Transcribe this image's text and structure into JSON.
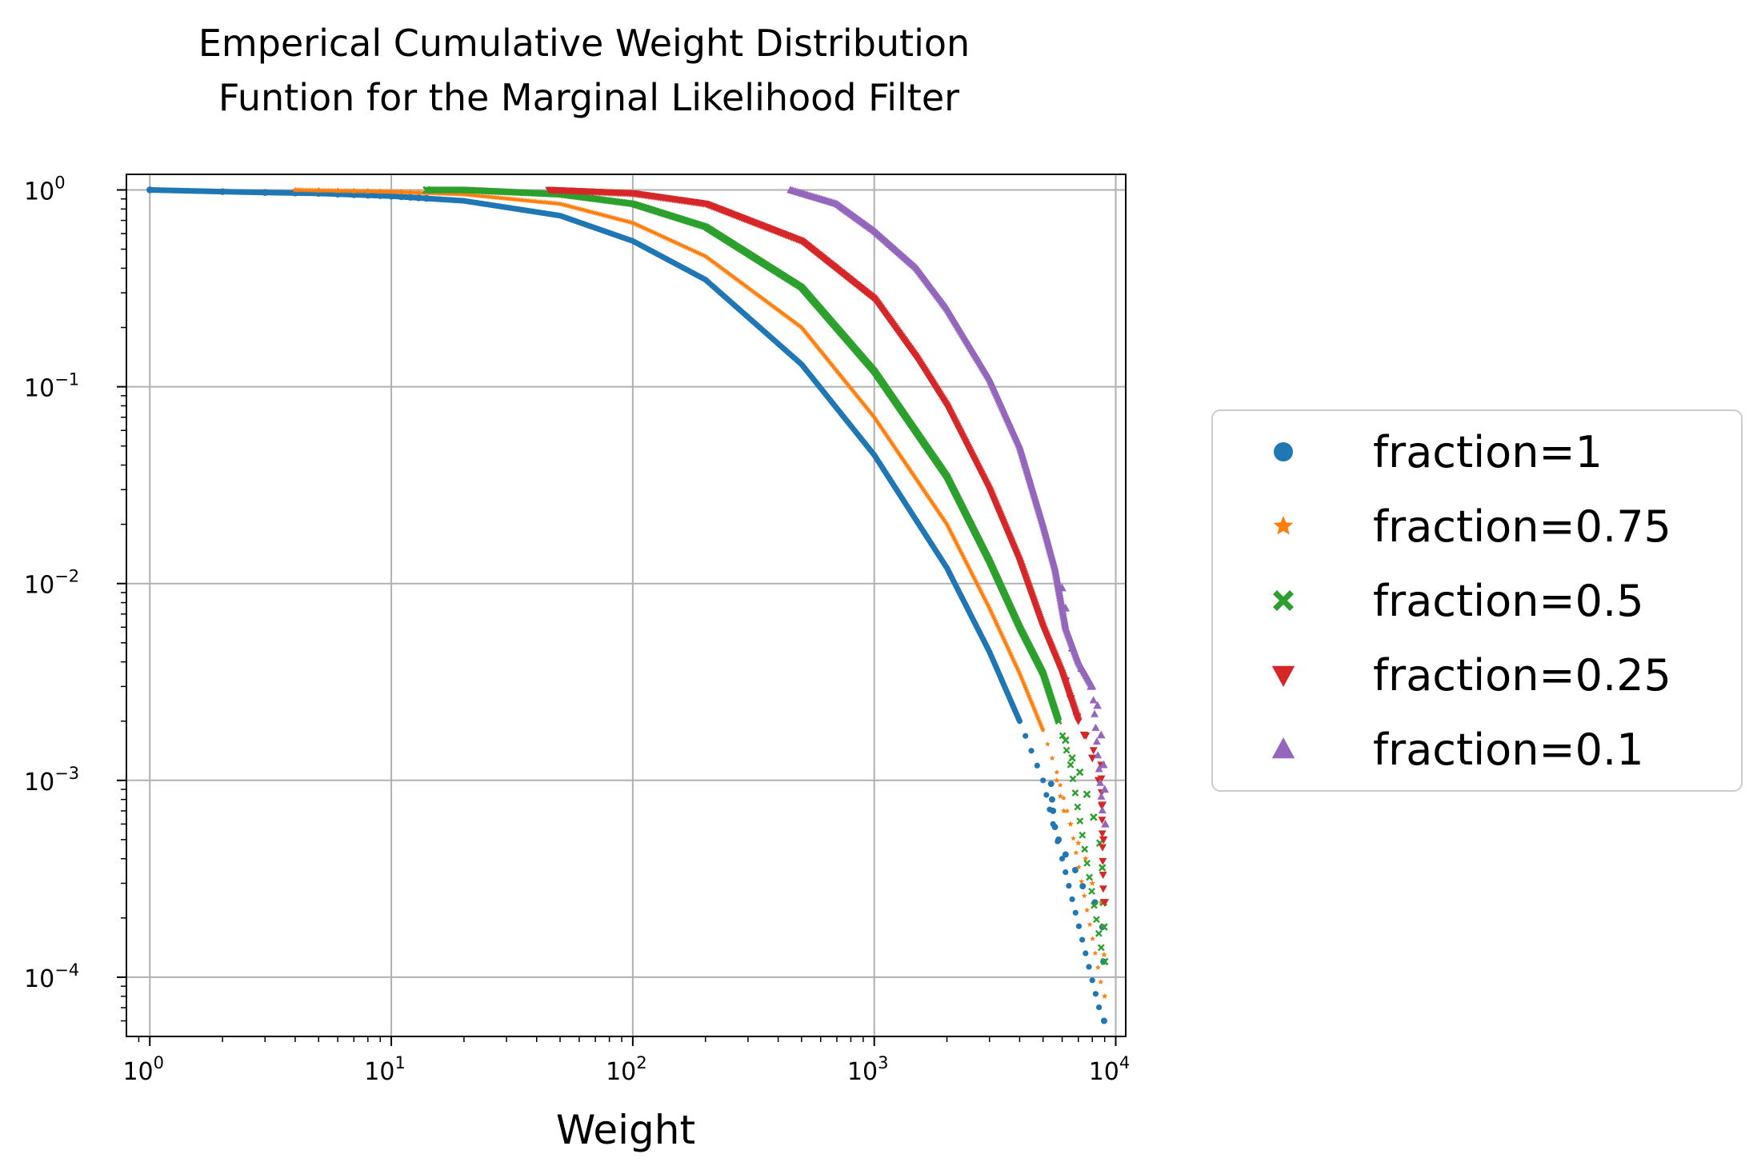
{
  "chart_data": {
    "type": "scatter",
    "title": [
      "Emperical Cumulative Weight Distribution",
      "Funtion for the Marginal Likelihood Filter"
    ],
    "xlabel": "Weight",
    "ylabel": "",
    "xscale": "log",
    "yscale": "log",
    "xlim": [
      0.8,
      11000
    ],
    "ylim": [
      5e-05,
      1.2
    ],
    "grid": true,
    "legend_position": "outside-right",
    "x_ticks": [
      {
        "value": 1,
        "base": "10",
        "exp": "0"
      },
      {
        "value": 10,
        "base": "10",
        "exp": "1"
      },
      {
        "value": 100,
        "base": "10",
        "exp": "2"
      },
      {
        "value": 1000,
        "base": "10",
        "exp": "3"
      },
      {
        "value": 10000,
        "base": "10",
        "exp": "4"
      }
    ],
    "y_ticks": [
      {
        "value": 1,
        "base": "10",
        "exp": "0"
      },
      {
        "value": 0.1,
        "base": "10",
        "exp": "−1"
      },
      {
        "value": 0.01,
        "base": "10",
        "exp": "−2"
      },
      {
        "value": 0.001,
        "base": "10",
        "exp": "−3"
      },
      {
        "value": 0.0001,
        "base": "10",
        "exp": "−4"
      }
    ],
    "series": [
      {
        "name": "fraction=1",
        "marker": "circle",
        "color": "#1f77b4",
        "points": [
          [
            1,
            1
          ],
          [
            2,
            0.98
          ],
          [
            3,
            0.97
          ],
          [
            5,
            0.96
          ],
          [
            10,
            0.93
          ],
          [
            20,
            0.88
          ],
          [
            50,
            0.74
          ],
          [
            100,
            0.55
          ],
          [
            200,
            0.35
          ],
          [
            500,
            0.13
          ],
          [
            1000,
            0.045
          ],
          [
            2000,
            0.012
          ],
          [
            3000,
            0.0045
          ],
          [
            4000,
            0.002
          ],
          [
            5000,
            0.001
          ],
          [
            5500,
            0.0006
          ],
          [
            6000,
            0.0004
          ],
          [
            8800,
            6e-05
          ]
        ],
        "tail": [
          [
            5400,
            0.00096
          ],
          [
            5450,
            0.0008
          ],
          [
            5500,
            0.0007
          ],
          [
            5600,
            0.00058
          ],
          [
            5800,
            0.0005
          ],
          [
            6200,
            0.00042
          ],
          [
            6800,
            0.00035
          ],
          [
            7300,
            0.00029
          ],
          [
            8200,
            0.00024
          ],
          [
            8800,
            0.00018
          ],
          [
            8900,
            0.00012
          ],
          [
            8950,
            6e-05
          ]
        ]
      },
      {
        "name": "fraction=0.75",
        "marker": "star",
        "color": "#ff7f0e",
        "points": [
          [
            4,
            1
          ],
          [
            10,
            0.98
          ],
          [
            20,
            0.95
          ],
          [
            50,
            0.85
          ],
          [
            100,
            0.68
          ],
          [
            200,
            0.46
          ],
          [
            500,
            0.2
          ],
          [
            1000,
            0.07
          ],
          [
            2000,
            0.02
          ],
          [
            3000,
            0.0075
          ],
          [
            4000,
            0.0035
          ],
          [
            5000,
            0.0018
          ],
          [
            5700,
            0.0011
          ],
          [
            6500,
            0.0006
          ],
          [
            8900,
            8e-05
          ]
        ],
        "tail": [
          [
            5700,
            0.001
          ],
          [
            5900,
            0.00083
          ],
          [
            6100,
            0.0007
          ],
          [
            6500,
            0.0006
          ],
          [
            7000,
            0.00048
          ],
          [
            7500,
            0.0004
          ],
          [
            8000,
            0.0003
          ],
          [
            8700,
            0.00024
          ],
          [
            8900,
            0.00018
          ],
          [
            8950,
            0.00013
          ],
          [
            9000,
            8e-05
          ]
        ]
      },
      {
        "name": "fraction=0.5",
        "marker": "x",
        "color": "#2ca02c",
        "points": [
          [
            14,
            1
          ],
          [
            20,
            1
          ],
          [
            50,
            0.95
          ],
          [
            100,
            0.85
          ],
          [
            200,
            0.65
          ],
          [
            500,
            0.32
          ],
          [
            1000,
            0.12
          ],
          [
            2000,
            0.035
          ],
          [
            3000,
            0.013
          ],
          [
            4000,
            0.006
          ],
          [
            5000,
            0.0035
          ],
          [
            5800,
            0.002
          ],
          [
            6500,
            0.0012
          ],
          [
            8900,
            0.00012
          ]
        ],
        "tail": [
          [
            6200,
            0.0016
          ],
          [
            6600,
            0.0013
          ],
          [
            7100,
            0.0011
          ],
          [
            7600,
            0.00085
          ],
          [
            8100,
            0.00065
          ],
          [
            8600,
            0.00048
          ],
          [
            8800,
            0.00036
          ],
          [
            8900,
            0.00024
          ],
          [
            8950,
            0.00018
          ],
          [
            9000,
            0.00012
          ]
        ]
      },
      {
        "name": "fraction=0.25",
        "marker": "triangle-down",
        "color": "#d62728",
        "points": [
          [
            45,
            1
          ],
          [
            100,
            0.96
          ],
          [
            200,
            0.85
          ],
          [
            500,
            0.55
          ],
          [
            1000,
            0.28
          ],
          [
            1500,
            0.14
          ],
          [
            2000,
            0.08
          ],
          [
            3000,
            0.03
          ],
          [
            4000,
            0.013
          ],
          [
            5000,
            0.006
          ],
          [
            6000,
            0.0035
          ],
          [
            7000,
            0.002
          ],
          [
            8700,
            0.0012
          ],
          [
            8900,
            0.00024
          ]
        ],
        "tail": [
          [
            6200,
            0.0032
          ],
          [
            6500,
            0.0026
          ],
          [
            6900,
            0.0021
          ],
          [
            7400,
            0.0017
          ],
          [
            8000,
            0.0013
          ],
          [
            8500,
            0.001
          ],
          [
            8800,
            0.00075
          ],
          [
            8900,
            0.0005
          ],
          [
            9000,
            0.00024
          ]
        ]
      },
      {
        "name": "fraction=0.1",
        "marker": "triangle-up",
        "color": "#9467bd",
        "points": [
          [
            450,
            1
          ],
          [
            700,
            0.85
          ],
          [
            1000,
            0.62
          ],
          [
            1500,
            0.4
          ],
          [
            2000,
            0.25
          ],
          [
            3000,
            0.11
          ],
          [
            4000,
            0.05
          ],
          [
            5000,
            0.02
          ],
          [
            5600,
            0.012
          ],
          [
            6200,
            0.006
          ],
          [
            7000,
            0.004
          ],
          [
            8000,
            0.003
          ],
          [
            8900,
            0.0006
          ]
        ],
        "tail": [
          [
            6000,
            0.0095
          ],
          [
            6200,
            0.0075
          ],
          [
            6600,
            0.0047
          ],
          [
            7200,
            0.0037
          ],
          [
            7900,
            0.003
          ],
          [
            8400,
            0.0024
          ],
          [
            8700,
            0.0017
          ],
          [
            8900,
            0.0012
          ],
          [
            9000,
            0.0009
          ],
          [
            9050,
            0.0006
          ]
        ]
      }
    ]
  }
}
